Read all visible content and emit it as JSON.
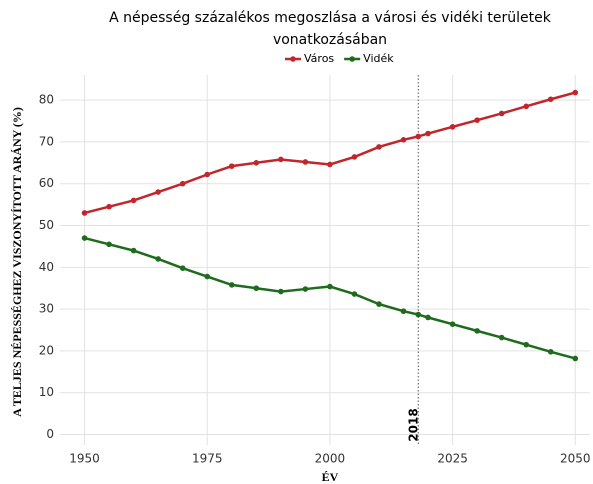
{
  "chart_data": {
    "type": "line",
    "title": [
      "A népesség százalékos megoszlása a városi és vidéki területek",
      "vonatkozásában"
    ],
    "x_label": "ÉV",
    "y_label": "A TELJES NÉPESSÉGHEZ VISZONYÍTOTT ARÁNY (%)",
    "x": [
      1950,
      1955,
      1960,
      1965,
      1970,
      1975,
      1980,
      1985,
      1990,
      1995,
      2000,
      2005,
      2010,
      2015,
      2018,
      2020,
      2025,
      2030,
      2035,
      2040,
      2045,
      2050
    ],
    "series": [
      {
        "name": "Város",
        "color": "#c0272d",
        "values": [
          53,
          54.5,
          56,
          58,
          60,
          62.2,
          64.2,
          65,
          65.8,
          65.2,
          64.6,
          66.4,
          68.8,
          70.5,
          71.3,
          72,
          73.6,
          75.2,
          76.8,
          78.5,
          80.2,
          81.8
        ]
      },
      {
        "name": "Vidék",
        "color": "#1e6b1e",
        "values": [
          47,
          45.5,
          44,
          42,
          39.8,
          37.8,
          35.8,
          35,
          34.2,
          34.8,
          35.4,
          33.6,
          31.2,
          29.5,
          28.7,
          28,
          26.4,
          24.8,
          23.2,
          21.5,
          19.8,
          18.2
        ]
      }
    ],
    "xlim": [
      1945,
      2053
    ],
    "ylim": [
      -2.5,
      86
    ],
    "xticks": [
      1950,
      1975,
      2000,
      2025,
      2050
    ],
    "yticks": [
      0,
      10,
      20,
      30,
      40,
      50,
      60,
      70,
      80
    ],
    "grid": true,
    "legend": "top",
    "annotations": [
      {
        "x": 2018,
        "text": "2018"
      }
    ]
  }
}
